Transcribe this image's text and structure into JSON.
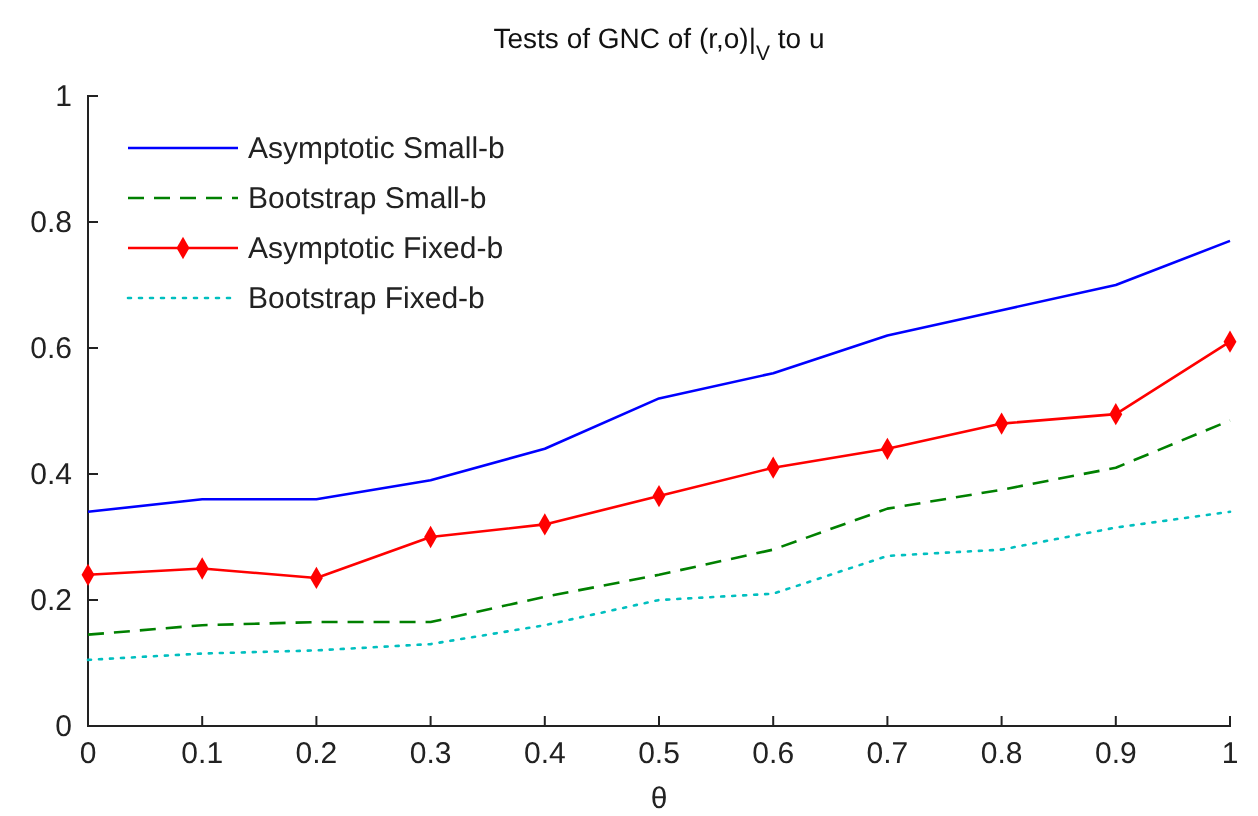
{
  "chart_data": {
    "type": "line",
    "title": "Tests of GNC of (r,o)|$_{V}$ to u",
    "xlabel": "θ",
    "x": [
      0,
      0.1,
      0.2,
      0.3,
      0.4,
      0.5,
      0.6,
      0.7,
      0.8,
      0.9,
      1
    ],
    "xlim": [
      0,
      1
    ],
    "xticks": [
      0,
      0.1,
      0.2,
      0.3,
      0.4,
      0.5,
      0.6,
      0.7,
      0.8,
      0.9,
      1
    ],
    "ylim": [
      0,
      1
    ],
    "yticks": [
      0,
      0.2,
      0.4,
      0.6,
      0.8,
      1
    ],
    "grid": false,
    "legend": "top left",
    "series": [
      {
        "name": "Asymptotic Small-b",
        "color": "#0000ff",
        "line_style": "solid",
        "marker": "none",
        "values": [
          0.34,
          0.36,
          0.36,
          0.39,
          0.44,
          0.52,
          0.56,
          0.62,
          0.66,
          0.7,
          0.77
        ]
      },
      {
        "name": "Bootstrap Small-b",
        "color": "#008000",
        "line_style": "dashed",
        "marker": "none",
        "values": [
          0.145,
          0.16,
          0.165,
          0.165,
          0.205,
          0.24,
          0.28,
          0.345,
          0.375,
          0.41,
          0.485
        ]
      },
      {
        "name": "Asymptotic Fixed-b",
        "color": "#ff0000",
        "line_style": "solid",
        "marker": "diamond",
        "values": [
          0.24,
          0.25,
          0.235,
          0.3,
          0.32,
          0.365,
          0.41,
          0.44,
          0.48,
          0.495,
          0.61
        ]
      },
      {
        "name": "Bootstrap Fixed-b",
        "color": "#00bfbf",
        "line_style": "dotted",
        "marker": "none",
        "values": [
          0.105,
          0.115,
          0.12,
          0.13,
          0.16,
          0.2,
          0.21,
          0.27,
          0.28,
          0.315,
          0.34
        ]
      }
    ]
  }
}
